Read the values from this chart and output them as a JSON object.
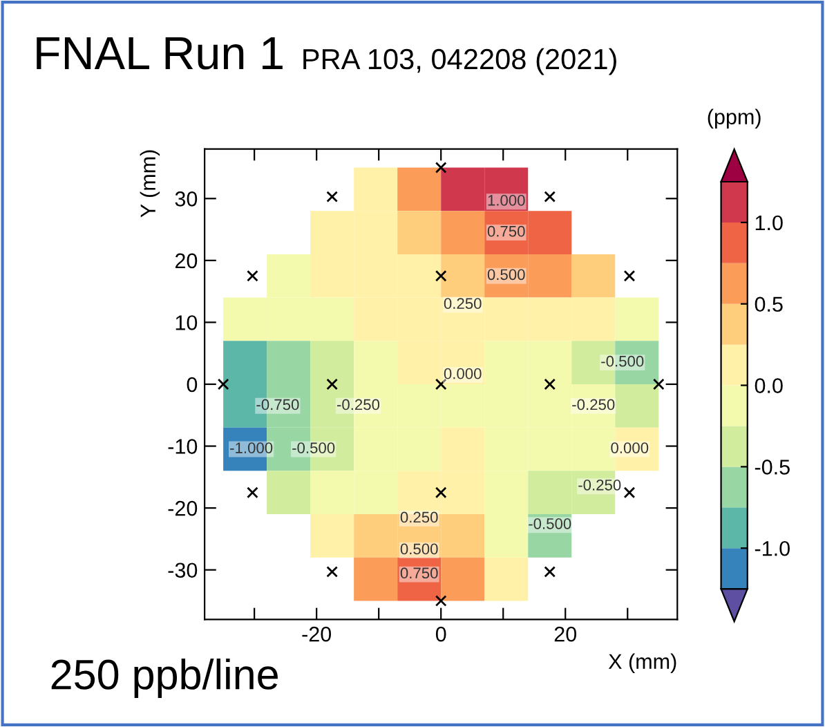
{
  "chart_data": {
    "type": "heatmap",
    "title": "FNAL Run 1",
    "subtitle": "PRA 103, 042208 (2021)",
    "xlabel": "X (mm)",
    "ylabel": "Y (mm)",
    "clabel": "(ppm)",
    "x": [
      -31.5,
      -24.5,
      -17.5,
      -10.5,
      -3.5,
      3.5,
      10.5,
      17.5,
      24.5,
      31.5
    ],
    "y": [
      31.5,
      24.5,
      17.5,
      10.5,
      3.5,
      -3.5,
      -10.5,
      -17.5,
      -24.5,
      -31.5
    ],
    "cells": [
      [
        null,
        null,
        null,
        0.1,
        0.6,
        1.05,
        1.1,
        null,
        null,
        null
      ],
      [
        null,
        null,
        0.05,
        0.1,
        0.4,
        0.6,
        0.75,
        0.8,
        null,
        null
      ],
      [
        null,
        -0.05,
        0.0,
        0.1,
        0.2,
        0.35,
        0.5,
        0.55,
        0.45,
        null
      ],
      [
        -0.25,
        -0.1,
        -0.05,
        0.0,
        0.1,
        0.2,
        0.2,
        0.15,
        0.05,
        -0.25
      ],
      [
        -0.8,
        -0.6,
        -0.3,
        -0.1,
        0.0,
        0.02,
        -0.02,
        -0.1,
        -0.3,
        -0.6
      ],
      [
        -0.9,
        -0.7,
        -0.4,
        -0.15,
        -0.05,
        -0.05,
        -0.08,
        -0.12,
        -0.25,
        -0.5
      ],
      [
        -1.05,
        -0.7,
        -0.35,
        -0.15,
        -0.05,
        0.0,
        -0.1,
        -0.2,
        -0.25,
        0.05
      ],
      [
        null,
        -0.4,
        -0.2,
        -0.05,
        0.1,
        0.05,
        -0.15,
        -0.35,
        -0.3,
        null
      ],
      [
        null,
        null,
        0.05,
        0.25,
        0.35,
        0.25,
        -0.2,
        -0.55,
        null,
        null
      ],
      [
        null,
        null,
        null,
        0.55,
        0.8,
        0.6,
        0.1,
        null,
        null,
        null
      ]
    ],
    "clim": [
      -1.25,
      1.25
    ],
    "cticks": [
      {
        "value": -1,
        "label": "-1.0"
      },
      -0.5,
      {
        "value": 0,
        "label": "0.0"
      },
      0.5,
      {
        "value": 1,
        "label": "1.0"
      }
    ],
    "xlim": [
      -38,
      38
    ],
    "ylim": [
      -38,
      38
    ],
    "xticks": [
      {
        "value": -30,
        "label": null
      },
      -20,
      {
        "value": -10,
        "label": null
      },
      0,
      {
        "value": 10,
        "label": null
      },
      20,
      {
        "value": 30,
        "label": null
      }
    ],
    "yticks": [
      -30,
      -20,
      -10,
      0,
      10,
      20,
      30
    ],
    "grid": false,
    "series": [
      {
        "type": "scatter",
        "marker": "cross",
        "color": "#000000",
        "x": [
          0,
          -17.5,
          17.5,
          -30.3,
          0,
          30.3,
          -35,
          -17.5,
          0,
          17.5,
          35,
          -30.3,
          0,
          30.3,
          -17.5,
          17.5,
          0
        ],
        "values": [
          35,
          30.3,
          30.3,
          17.5,
          17.5,
          17.5,
          0,
          0,
          0,
          0,
          0,
          -17.5,
          -17.5,
          -17.5,
          -30.3,
          -30.3,
          -35
        ]
      }
    ],
    "annotations": [
      "1.000",
      "0.750",
      "0.500",
      "0.250",
      "0.000",
      "-0.250",
      "-0.500",
      "-0.750",
      "-1.000",
      "-0.250",
      "-0.500",
      "0.000",
      "-0.250",
      "-0.500",
      "0.250",
      "0.500",
      "0.750",
      "250 ppb/line"
    ]
  }
}
